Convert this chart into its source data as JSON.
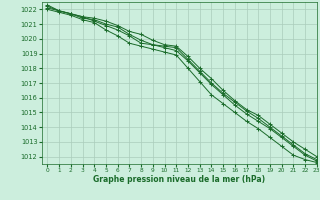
{
  "title": "Graphe pression niveau de la mer (hPa)",
  "background_color": "#cceedd",
  "grid_color": "#aaccbb",
  "line_color": "#1a6b2a",
  "xlim": [
    -0.5,
    23
  ],
  "ylim": [
    1011.5,
    1022.5
  ],
  "xticks": [
    0,
    1,
    2,
    3,
    4,
    5,
    6,
    7,
    8,
    9,
    10,
    11,
    12,
    13,
    14,
    15,
    16,
    17,
    18,
    19,
    20,
    21,
    22,
    23
  ],
  "yticks": [
    1012,
    1013,
    1014,
    1015,
    1016,
    1017,
    1018,
    1019,
    1020,
    1021,
    1022
  ],
  "series": [
    [
      1022.3,
      1021.9,
      1021.7,
      1021.5,
      1021.4,
      1021.2,
      1020.9,
      1020.5,
      1020.3,
      1019.9,
      1019.6,
      1019.5,
      1018.8,
      1018.0,
      1017.3,
      1016.5,
      1015.8,
      1015.2,
      1014.8,
      1014.2,
      1013.6,
      1013.0,
      1012.5,
      1012.0
    ],
    [
      1022.2,
      1021.9,
      1021.7,
      1021.4,
      1021.3,
      1021.0,
      1020.8,
      1020.3,
      1019.9,
      1019.6,
      1019.4,
      1019.2,
      1018.5,
      1017.7,
      1016.9,
      1016.2,
      1015.5,
      1014.9,
      1014.4,
      1013.9,
      1013.3,
      1012.7,
      1012.1,
      1011.7
    ],
    [
      1022.1,
      1021.9,
      1021.7,
      1021.5,
      1021.2,
      1020.9,
      1020.6,
      1020.2,
      1019.7,
      1019.6,
      1019.5,
      1019.4,
      1018.6,
      1017.8,
      1017.0,
      1016.3,
      1015.7,
      1015.1,
      1014.6,
      1014.0,
      1013.4,
      1012.8,
      1012.2,
      1011.8
    ],
    [
      1022.0,
      1021.8,
      1021.6,
      1021.3,
      1021.1,
      1020.6,
      1020.2,
      1019.7,
      1019.5,
      1019.3,
      1019.1,
      1018.9,
      1018.0,
      1017.1,
      1016.2,
      1015.6,
      1015.0,
      1014.4,
      1013.9,
      1013.3,
      1012.7,
      1012.1,
      1011.8,
      1011.6
    ]
  ]
}
